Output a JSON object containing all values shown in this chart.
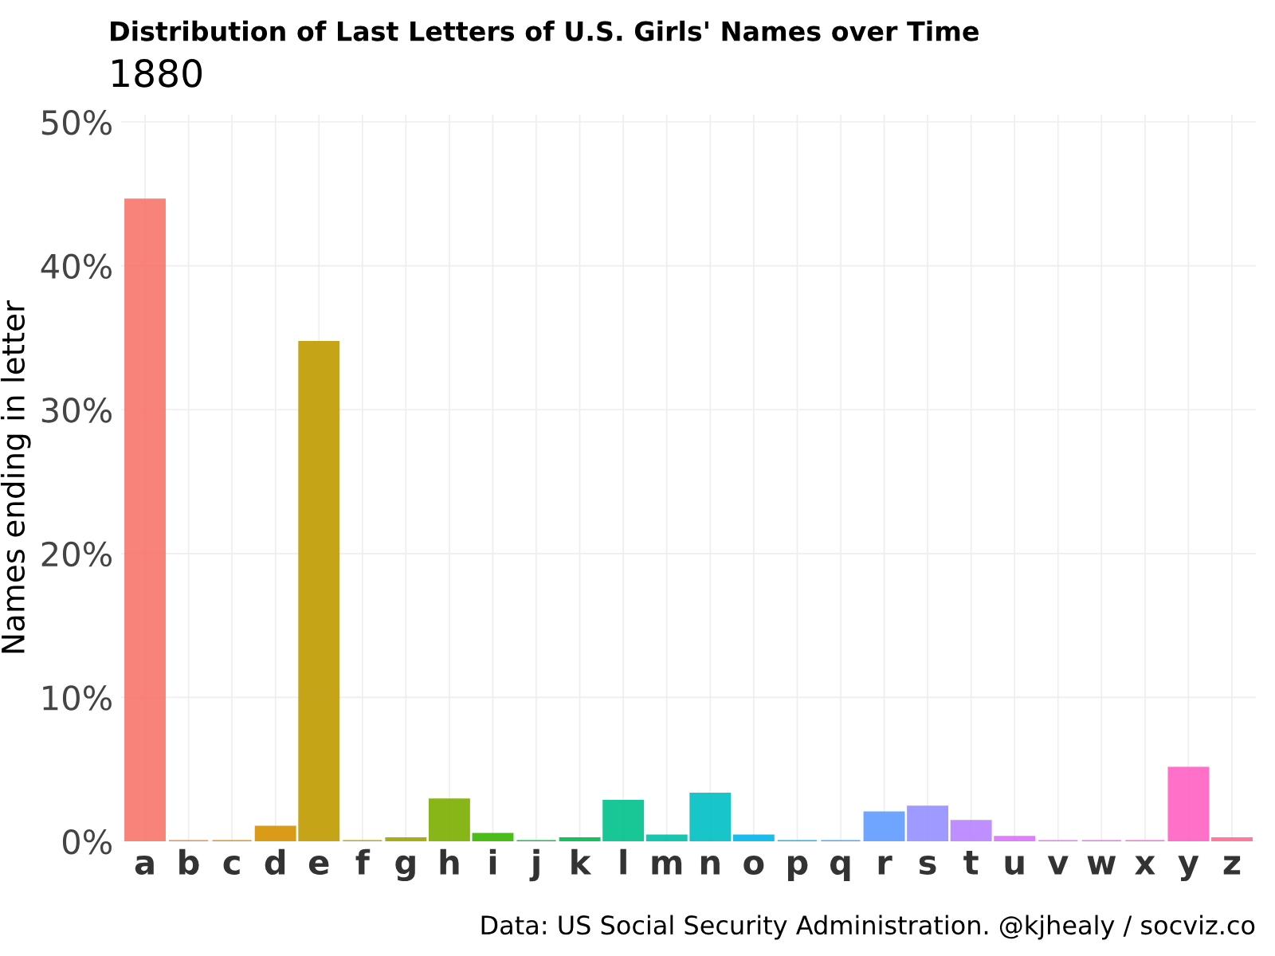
{
  "chart_data": {
    "type": "bar",
    "title": "Distribution of Last Letters of U.S. Girls' Names over Time",
    "subtitle": "1880",
    "ylabel": "Names ending in letter",
    "categories": [
      "a",
      "b",
      "c",
      "d",
      "e",
      "f",
      "g",
      "h",
      "i",
      "j",
      "k",
      "l",
      "m",
      "n",
      "o",
      "p",
      "q",
      "r",
      "s",
      "t",
      "u",
      "v",
      "w",
      "x",
      "y",
      "z"
    ],
    "values": [
      44.6,
      0,
      0,
      1.0,
      34.7,
      0,
      0.2,
      2.9,
      0.5,
      0,
      0.2,
      2.8,
      0.4,
      3.3,
      0.4,
      0,
      0,
      2.0,
      2.4,
      1.4,
      0.3,
      0,
      0,
      0,
      5.1,
      0.2
    ],
    "colors": [
      "#f8766d",
      "#ee8043",
      "#e38900",
      "#d69100",
      "#c09b00",
      "#b3a000",
      "#9fa600",
      "#7cae00",
      "#39b600",
      "#00b83a",
      "#00bb4e",
      "#00c08b",
      "#00bfa6",
      "#00bfc4",
      "#00b8e7",
      "#00b0f6",
      "#35a2ff",
      "#619cff",
      "#9590ff",
      "#b983ff",
      "#db72fb",
      "#e76bf3",
      "#f564e3",
      "#fd61d1",
      "#ff61c3",
      "#ff6c91"
    ],
    "ylim": [
      0,
      50.5
    ],
    "yticks": [
      {
        "value": 0,
        "label": "0%"
      },
      {
        "value": 10,
        "label": "10%"
      },
      {
        "value": 20,
        "label": "20%"
      },
      {
        "value": 30,
        "label": "30%"
      },
      {
        "value": 40,
        "label": "40%"
      },
      {
        "value": 50,
        "label": "50%"
      }
    ],
    "grid": true,
    "annotations": [
      "Data: US Social Security Administration. @kjhealy / socviz.co"
    ]
  }
}
